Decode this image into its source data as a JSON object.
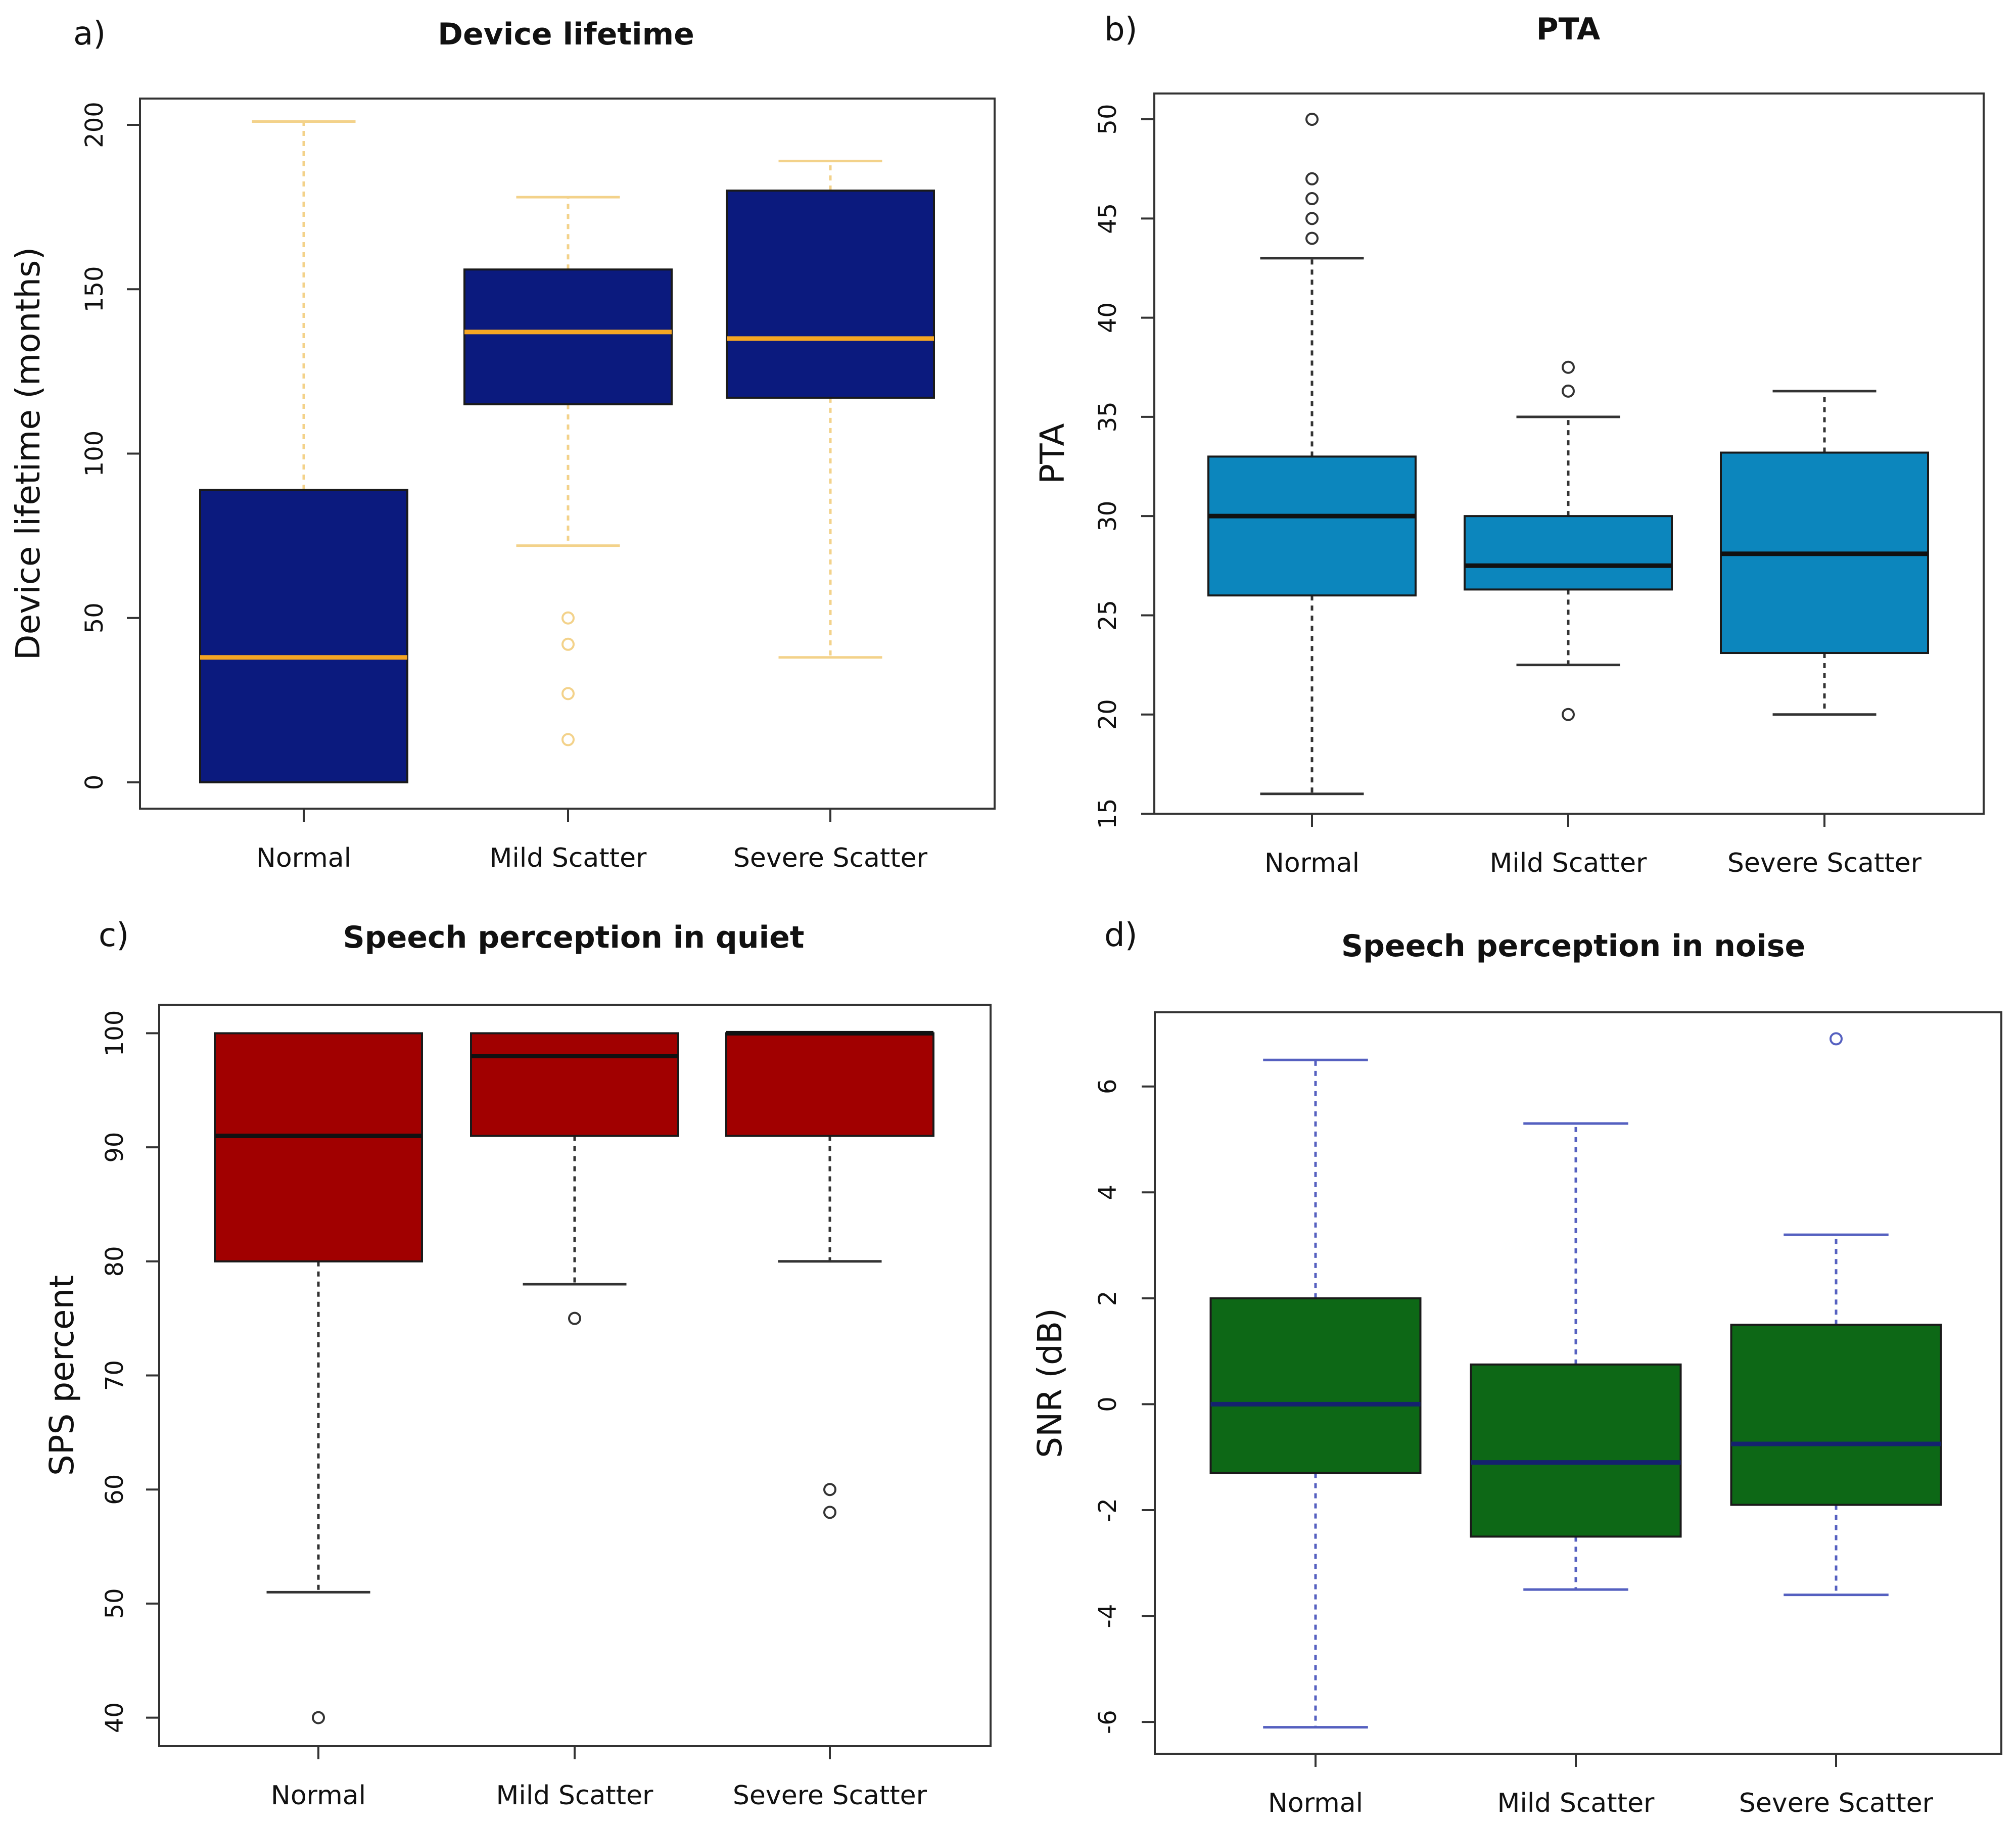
{
  "colors": {
    "a_box": "#0B1A7E",
    "a_median": "#F5A623",
    "a_whisker": "#F3D28A",
    "b_box": "#0C86BD",
    "b_median": "#111111",
    "b_whisker": "#333333",
    "c_box": "#A10000",
    "c_median": "#111111",
    "c_whisker": "#333333",
    "d_box": "#0D6816",
    "d_median": "#14226E",
    "d_whisker": "#5560C0",
    "frame": "#333333"
  },
  "chart_data": [
    {
      "type": "box",
      "panel": "a)",
      "title": "Device lifetime",
      "ylabel": "Device lifetime (months)",
      "xlabel": "",
      "ylim": [
        -8,
        208
      ],
      "yticks": [
        "0",
        "50",
        "100",
        "150",
        "200"
      ],
      "categories": [
        "Normal",
        "Mild Scatter",
        "Severe Scatter"
      ],
      "boxes": [
        {
          "whisker_low": 0,
          "q1": 0,
          "median": 38,
          "q3": 89,
          "whisker_high": 201,
          "outliers": []
        },
        {
          "whisker_low": 72,
          "q1": 115,
          "median": 137,
          "q3": 156,
          "whisker_high": 178,
          "outliers": [
            50,
            42,
            27,
            13
          ]
        },
        {
          "whisker_low": 38,
          "q1": 117,
          "median": 135,
          "q3": 180,
          "whisker_high": 189,
          "outliers": []
        }
      ]
    },
    {
      "type": "box",
      "panel": "b)",
      "title": "PTA",
      "ylabel": "PTA",
      "xlabel": "",
      "ylim": [
        15,
        51.3
      ],
      "yticks": [
        "15",
        "20",
        "25",
        "30",
        "35",
        "40",
        "45",
        "50"
      ],
      "categories": [
        "Normal",
        "Mild Scatter",
        "Severe Scatter"
      ],
      "boxes": [
        {
          "whisker_low": 16,
          "q1": 26,
          "median": 30,
          "q3": 33,
          "whisker_high": 43,
          "outliers": [
            44,
            45,
            46,
            47,
            50
          ]
        },
        {
          "whisker_low": 22.5,
          "q1": 26.3,
          "median": 27.5,
          "q3": 30,
          "whisker_high": 35,
          "outliers": [
            20,
            36.3,
            37.5
          ]
        },
        {
          "whisker_low": 20,
          "q1": 23.1,
          "median": 28.1,
          "q3": 33.2,
          "whisker_high": 36.3,
          "outliers": []
        }
      ]
    },
    {
      "type": "box",
      "panel": "c)",
      "title": "Speech perception in quiet",
      "ylabel": "SPS percent",
      "xlabel": "",
      "ylim": [
        37.5,
        102.5
      ],
      "yticks": [
        "40",
        "50",
        "60",
        "70",
        "80",
        "90",
        "100"
      ],
      "categories": [
        "Normal",
        "Mild Scatter",
        "Severe Scatter"
      ],
      "boxes": [
        {
          "whisker_low": 51,
          "q1": 80,
          "median": 91,
          "q3": 100,
          "whisker_high": 100,
          "outliers": [
            40
          ]
        },
        {
          "whisker_low": 78,
          "q1": 91,
          "median": 98,
          "q3": 100,
          "whisker_high": 100,
          "outliers": [
            75
          ]
        },
        {
          "whisker_low": 80,
          "q1": 91,
          "median": 100,
          "q3": 100,
          "whisker_high": 100,
          "outliers": [
            60,
            58
          ]
        }
      ]
    },
    {
      "type": "box",
      "panel": "d)",
      "title": "Speech perception in noise",
      "ylabel": "SNR (dB)",
      "xlabel": "",
      "ylim": [
        -6.6,
        7.4
      ],
      "yticks": [
        "-6",
        "-4",
        "-2",
        "0",
        "2",
        "4",
        "6"
      ],
      "categories": [
        "Normal",
        "Mild Scatter",
        "Severe Scatter"
      ],
      "boxes": [
        {
          "whisker_low": -6.1,
          "q1": -1.3,
          "median": 0,
          "q3": 2,
          "whisker_high": 6.5,
          "outliers": []
        },
        {
          "whisker_low": -3.5,
          "q1": -2.5,
          "median": -1.1,
          "q3": 0.75,
          "whisker_high": 5.3,
          "outliers": []
        },
        {
          "whisker_low": -3.6,
          "q1": -1.9,
          "median": -0.75,
          "q3": 1.5,
          "whisker_high": 3.2,
          "outliers": [
            6.9
          ]
        }
      ]
    }
  ]
}
